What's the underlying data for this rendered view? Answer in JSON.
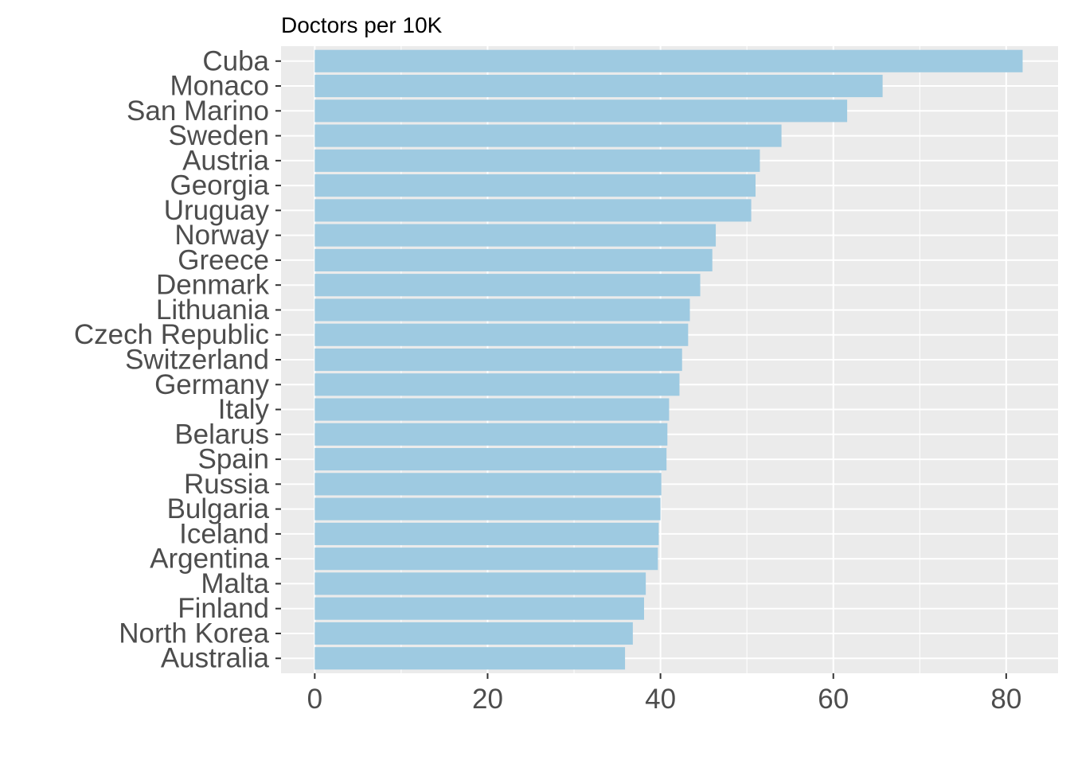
{
  "chart_data": {
    "type": "bar",
    "orientation": "horizontal",
    "title": "Doctors per 10K",
    "xlabel": "",
    "ylabel": "",
    "categories": [
      "Cuba",
      "Monaco",
      "San Marino",
      "Sweden",
      "Austria",
      "Georgia",
      "Uruguay",
      "Norway",
      "Greece",
      "Denmark",
      "Lithuania",
      "Czech Republic",
      "Switzerland",
      "Germany",
      "Italy",
      "Belarus",
      "Spain",
      "Russia",
      "Bulgaria",
      "Iceland",
      "Argentina",
      "Malta",
      "Finland",
      "North Korea",
      "Australia"
    ],
    "values": [
      81.9,
      65.7,
      61.6,
      54.0,
      51.5,
      51.0,
      50.5,
      46.4,
      46.0,
      44.6,
      43.4,
      43.2,
      42.5,
      42.2,
      41.0,
      40.8,
      40.7,
      40.1,
      40.0,
      39.8,
      39.7,
      38.3,
      38.1,
      36.8,
      35.9
    ],
    "xlim": [
      -3.9,
      86.0
    ],
    "xticks": [
      0,
      20,
      40,
      60,
      80
    ],
    "grid": true,
    "legend": "none",
    "colors": {
      "bar": "#9ecae1",
      "panel_background": "#ebebeb",
      "grid": "#ffffff",
      "axis_text": "#4d4d4d",
      "tick": "#333333"
    }
  }
}
